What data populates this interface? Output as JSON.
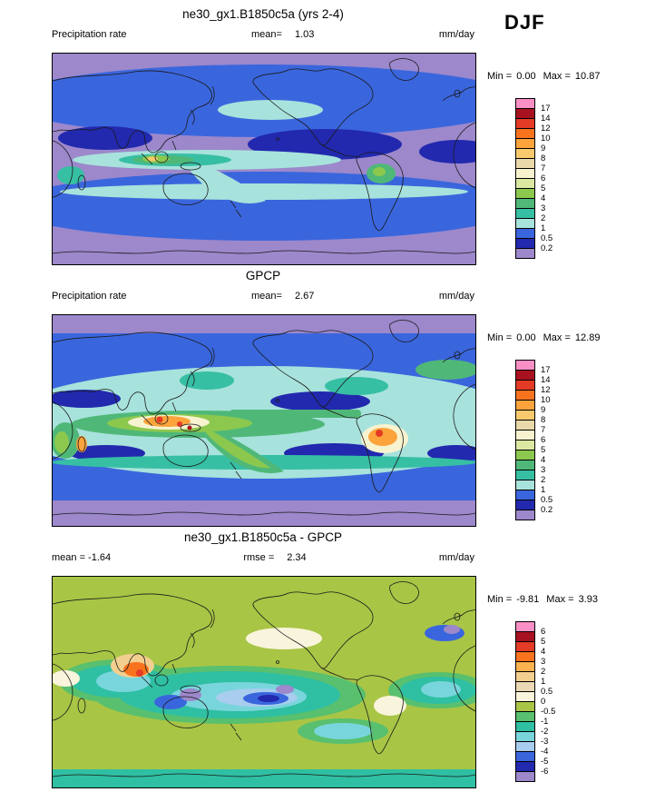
{
  "figure": {
    "season_label": "DJF"
  },
  "panels": [
    {
      "title": "ne30_gx1.B1850c5a (yrs 2-4)",
      "stats_left": "Precipitation rate",
      "center_label": "mean=",
      "center_value": "1.03",
      "units": "mm/day",
      "min_label": "Min =",
      "min_value": "0.00",
      "max_label": "Max =",
      "max_value": "10.87",
      "colorbar": {
        "labels": [
          "17",
          "14",
          "12",
          "10",
          "9",
          "8",
          "7",
          "6",
          "5",
          "4",
          "3",
          "2",
          "1",
          "0.5",
          "0.2"
        ],
        "colors": [
          "#f98fc5",
          "#a81220",
          "#e33b25",
          "#f9731f",
          "#fca33c",
          "#f8c96d",
          "#e9d8a9",
          "#f8f3cf",
          "#dce8a2",
          "#8cc84e",
          "#4fb878",
          "#37bfa4",
          "#a8e2dc",
          "#3a66dd",
          "#2229ae",
          "#9c88cb"
        ]
      }
    },
    {
      "title": "GPCP",
      "stats_left": "Precipitation rate",
      "center_label": "mean=",
      "center_value": "2.67",
      "units": "mm/day",
      "min_label": "Min =",
      "min_value": "0.00",
      "max_label": "Max =",
      "max_value": "12.89",
      "colorbar": {
        "labels": [
          "17",
          "14",
          "12",
          "10",
          "9",
          "8",
          "7",
          "6",
          "5",
          "4",
          "3",
          "2",
          "1",
          "0.5",
          "0.2"
        ],
        "colors": [
          "#f98fc5",
          "#a81220",
          "#e33b25",
          "#f9731f",
          "#fca33c",
          "#f8c96d",
          "#e9d8a9",
          "#f8f3cf",
          "#dce8a2",
          "#8cc84e",
          "#4fb878",
          "#37bfa4",
          "#a8e2dc",
          "#3a66dd",
          "#2229ae",
          "#9c88cb"
        ]
      }
    },
    {
      "title": "ne30_gx1.B1850c5a - GPCP",
      "stats_left": "mean = -1.64",
      "center_label": "rmse =",
      "center_value": "2.34",
      "units": "mm/day",
      "min_label": "Min =",
      "min_value": "-9.81",
      "max_label": "Max =",
      "max_value": "3.93",
      "colorbar": {
        "labels": [
          "6",
          "5",
          "4",
          "3",
          "2",
          "1",
          "0.5",
          "0",
          "-0.5",
          "-1",
          "-2",
          "-3",
          "-4",
          "-5",
          "-6"
        ],
        "colors": [
          "#f98fc5",
          "#a81220",
          "#e33b25",
          "#f9731f",
          "#fcb24e",
          "#f3cf8f",
          "#ead9b4",
          "#f9f4dc",
          "#a9c545",
          "#58c06e",
          "#2fbfa3",
          "#79d5dc",
          "#a8cdee",
          "#3a66dd",
          "#2229ae",
          "#9c88cb"
        ]
      }
    }
  ],
  "chart_data": [
    {
      "type": "heatmap",
      "subtype": "global_filled_contour_map",
      "title": "ne30_gx1.B1850c5a (yrs 2-4)",
      "variable": "Precipitation rate",
      "season": "DJF",
      "units": "mm/day",
      "stats": {
        "mean": 1.03,
        "min": 0.0,
        "max": 10.87
      },
      "contour_levels": [
        0.2,
        0.5,
        1,
        2,
        3,
        4,
        5,
        6,
        7,
        8,
        9,
        10,
        12,
        14,
        17
      ],
      "palette_top_to_bottom": [
        "#f98fc5",
        "#a81220",
        "#e33b25",
        "#f9731f",
        "#fca33c",
        "#f8c96d",
        "#e9d8a9",
        "#f8f3cf",
        "#dce8a2",
        "#8cc84e",
        "#4fb878",
        "#37bfa4",
        "#a8e2dc",
        "#3a66dd",
        "#2229ae",
        "#9c88cb"
      ],
      "legend_position": "right"
    },
    {
      "type": "heatmap",
      "subtype": "global_filled_contour_map",
      "title": "GPCP",
      "variable": "Precipitation rate",
      "season": "DJF",
      "units": "mm/day",
      "stats": {
        "mean": 2.67,
        "min": 0.0,
        "max": 12.89
      },
      "contour_levels": [
        0.2,
        0.5,
        1,
        2,
        3,
        4,
        5,
        6,
        7,
        8,
        9,
        10,
        12,
        14,
        17
      ],
      "palette_top_to_bottom": [
        "#f98fc5",
        "#a81220",
        "#e33b25",
        "#f9731f",
        "#fca33c",
        "#f8c96d",
        "#e9d8a9",
        "#f8f3cf",
        "#dce8a2",
        "#8cc84e",
        "#4fb878",
        "#37bfa4",
        "#a8e2dc",
        "#3a66dd",
        "#2229ae",
        "#9c88cb"
      ],
      "legend_position": "right"
    },
    {
      "type": "heatmap",
      "subtype": "global_filled_contour_difference_map",
      "title": "ne30_gx1.B1850c5a - GPCP",
      "variable": "Precipitation rate difference",
      "season": "DJF",
      "units": "mm/day",
      "stats": {
        "mean": -1.64,
        "rmse": 2.34,
        "min": -9.81,
        "max": 3.93
      },
      "contour_levels": [
        -6,
        -5,
        -4,
        -3,
        -2,
        -1,
        -0.5,
        0,
        0.5,
        1,
        2,
        3,
        4,
        5,
        6
      ],
      "palette_top_to_bottom": [
        "#f98fc5",
        "#a81220",
        "#e33b25",
        "#f9731f",
        "#fcb24e",
        "#f3cf8f",
        "#ead9b4",
        "#f9f4dc",
        "#a9c545",
        "#58c06e",
        "#2fbfa3",
        "#79d5dc",
        "#a8cdee",
        "#3a66dd",
        "#2229ae",
        "#9c88cb"
      ],
      "legend_position": "right"
    }
  ]
}
